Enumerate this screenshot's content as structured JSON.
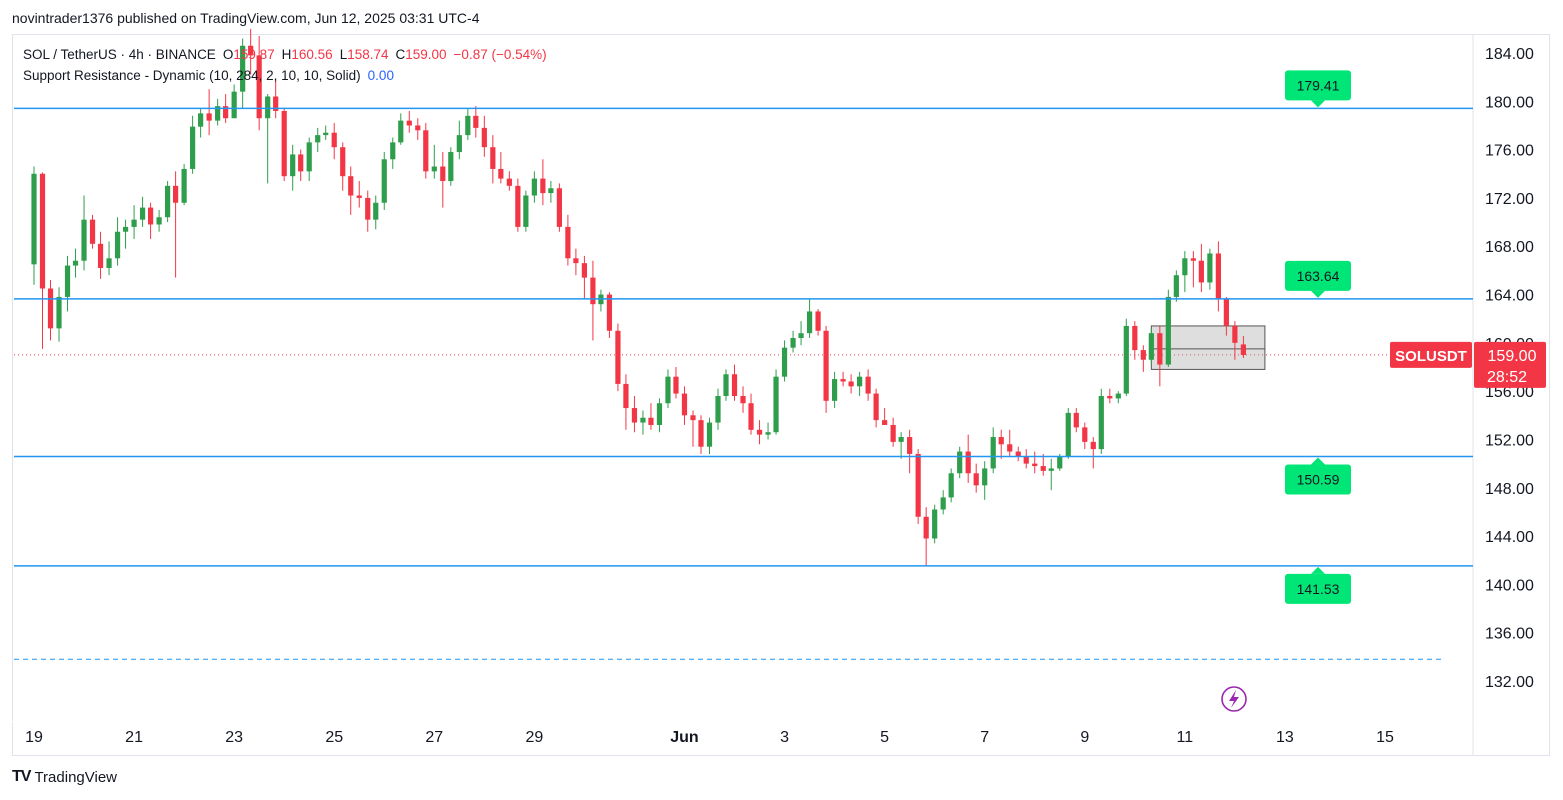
{
  "publisher_line": "novintrader1376 published on TradingView.com, Jun 12, 2025 03:31 UTC-4",
  "legend": {
    "symbol": "SOL / TetherUS · 4h · BINANCE",
    "o_label": "O",
    "o_value": "159.87",
    "h_label": "H",
    "h_value": "160.56",
    "l_label": "L",
    "l_value": "158.74",
    "c_label": "C",
    "c_value": "159.00",
    "change": "−0.87 (−0.54%)",
    "indicator": "Support Resistance - Dynamic (10, 284, 2, 10, 10, Solid)",
    "indicator_value": "0.00"
  },
  "footer": {
    "logo_mark": "TV",
    "logo_text": "TradingView"
  },
  "colors": {
    "up": "#089981",
    "up_body": "#2e9e4c",
    "down": "#f23645",
    "level_line": "#2196f3",
    "level_label": "#00e676",
    "price_label": "#f23645"
  },
  "chart_data": {
    "type": "candlestick",
    "symbol": "SOLUSDT",
    "timeframe": "4h",
    "ylim": [
      129,
      186
    ],
    "y_ticks": [
      132,
      136,
      140,
      144,
      148,
      152,
      156,
      160,
      164,
      168,
      172,
      176,
      180,
      184
    ],
    "x_ticks": [
      "19",
      "21",
      "23",
      "25",
      "27",
      "29",
      "Jun",
      "3",
      "5",
      "7",
      "9",
      "11",
      "13",
      "15"
    ],
    "x_tick_days": [
      19,
      21,
      23,
      25,
      27,
      29,
      32,
      34,
      36,
      38,
      40,
      42,
      44,
      46
    ],
    "last_price": "159.00",
    "countdown": "28:52",
    "support_resistance": [
      179.41,
      163.64,
      150.59,
      141.53
    ],
    "dashed_level": 133.8,
    "candles": [
      {
        "d": 19.0,
        "o": 166.5,
        "h": 174.6,
        "l": 164.8,
        "c": 174.0
      },
      {
        "d": 19.17,
        "o": 174.0,
        "h": 174.1,
        "l": 159.5,
        "c": 164.5
      },
      {
        "d": 19.33,
        "o": 164.5,
        "h": 165.2,
        "l": 160.2,
        "c": 161.2
      },
      {
        "d": 19.5,
        "o": 161.2,
        "h": 164.6,
        "l": 160.1,
        "c": 163.8
      },
      {
        "d": 19.67,
        "o": 163.8,
        "h": 167.2,
        "l": 162.6,
        "c": 166.4
      },
      {
        "d": 19.83,
        "o": 166.4,
        "h": 167.8,
        "l": 165.4,
        "c": 166.8
      },
      {
        "d": 20.0,
        "o": 166.8,
        "h": 172.2,
        "l": 166.0,
        "c": 170.2
      },
      {
        "d": 20.17,
        "o": 170.2,
        "h": 170.6,
        "l": 167.8,
        "c": 168.2
      },
      {
        "d": 20.33,
        "o": 168.2,
        "h": 169.2,
        "l": 165.3,
        "c": 166.2
      },
      {
        "d": 20.5,
        "o": 166.2,
        "h": 168.4,
        "l": 165.6,
        "c": 167.0
      },
      {
        "d": 20.67,
        "o": 167.0,
        "h": 170.4,
        "l": 166.4,
        "c": 169.2
      },
      {
        "d": 20.83,
        "o": 169.2,
        "h": 170.2,
        "l": 167.8,
        "c": 169.6
      },
      {
        "d": 21.0,
        "o": 169.6,
        "h": 171.4,
        "l": 168.6,
        "c": 170.2
      },
      {
        "d": 21.17,
        "o": 170.2,
        "h": 172.1,
        "l": 169.6,
        "c": 171.2
      },
      {
        "d": 21.33,
        "o": 171.2,
        "h": 171.6,
        "l": 168.6,
        "c": 169.8
      },
      {
        "d": 21.5,
        "o": 169.8,
        "h": 171.0,
        "l": 169.2,
        "c": 170.4
      },
      {
        "d": 21.67,
        "o": 170.4,
        "h": 173.4,
        "l": 170.0,
        "c": 173.0
      },
      {
        "d": 21.83,
        "o": 173.0,
        "h": 174.2,
        "l": 165.4,
        "c": 171.6
      },
      {
        "d": 22.0,
        "o": 171.6,
        "h": 174.8,
        "l": 171.4,
        "c": 174.4
      },
      {
        "d": 22.17,
        "o": 174.4,
        "h": 178.8,
        "l": 174.0,
        "c": 177.9
      },
      {
        "d": 22.33,
        "o": 177.9,
        "h": 179.4,
        "l": 177.0,
        "c": 179.0
      },
      {
        "d": 22.5,
        "o": 179.0,
        "h": 181.0,
        "l": 177.2,
        "c": 178.4
      },
      {
        "d": 22.67,
        "o": 178.4,
        "h": 180.2,
        "l": 178.0,
        "c": 179.6
      },
      {
        "d": 22.83,
        "o": 179.6,
        "h": 180.6,
        "l": 178.2,
        "c": 178.6
      },
      {
        "d": 23.0,
        "o": 178.6,
        "h": 181.4,
        "l": 178.6,
        "c": 180.8
      },
      {
        "d": 23.17,
        "o": 180.8,
        "h": 185.2,
        "l": 179.4,
        "c": 184.6
      },
      {
        "d": 23.33,
        "o": 184.6,
        "h": 186.0,
        "l": 182.2,
        "c": 183.8
      },
      {
        "d": 23.5,
        "o": 183.8,
        "h": 185.4,
        "l": 177.6,
        "c": 178.6
      },
      {
        "d": 23.67,
        "o": 178.6,
        "h": 180.6,
        "l": 173.2,
        "c": 180.4
      },
      {
        "d": 23.83,
        "o": 180.4,
        "h": 181.8,
        "l": 178.6,
        "c": 179.2
      },
      {
        "d": 24.0,
        "o": 179.2,
        "h": 179.4,
        "l": 173.4,
        "c": 173.8
      },
      {
        "d": 24.17,
        "o": 173.8,
        "h": 176.4,
        "l": 172.6,
        "c": 175.6
      },
      {
        "d": 24.33,
        "o": 175.6,
        "h": 176.0,
        "l": 173.4,
        "c": 174.2
      },
      {
        "d": 24.5,
        "o": 174.2,
        "h": 177.0,
        "l": 173.4,
        "c": 176.6
      },
      {
        "d": 24.67,
        "o": 176.6,
        "h": 177.8,
        "l": 175.8,
        "c": 177.2
      },
      {
        "d": 24.83,
        "o": 177.2,
        "h": 178.0,
        "l": 176.8,
        "c": 177.4
      },
      {
        "d": 25.0,
        "o": 177.4,
        "h": 178.2,
        "l": 175.2,
        "c": 176.2
      },
      {
        "d": 25.17,
        "o": 176.2,
        "h": 176.6,
        "l": 172.6,
        "c": 173.8
      },
      {
        "d": 25.33,
        "o": 173.8,
        "h": 174.6,
        "l": 170.6,
        "c": 172.2
      },
      {
        "d": 25.5,
        "o": 172.2,
        "h": 173.4,
        "l": 171.2,
        "c": 172.0
      },
      {
        "d": 25.67,
        "o": 172.0,
        "h": 172.6,
        "l": 169.2,
        "c": 170.2
      },
      {
        "d": 25.83,
        "o": 170.2,
        "h": 172.2,
        "l": 169.4,
        "c": 171.6
      },
      {
        "d": 26.0,
        "o": 171.6,
        "h": 175.8,
        "l": 171.0,
        "c": 175.2
      },
      {
        "d": 26.17,
        "o": 175.2,
        "h": 177.0,
        "l": 174.4,
        "c": 176.6
      },
      {
        "d": 26.33,
        "o": 176.6,
        "h": 179.0,
        "l": 176.4,
        "c": 178.4
      },
      {
        "d": 26.5,
        "o": 178.4,
        "h": 179.2,
        "l": 177.4,
        "c": 178.0
      },
      {
        "d": 26.67,
        "o": 178.0,
        "h": 178.6,
        "l": 176.8,
        "c": 177.6
      },
      {
        "d": 26.83,
        "o": 177.6,
        "h": 178.2,
        "l": 173.6,
        "c": 174.2
      },
      {
        "d": 27.0,
        "o": 174.2,
        "h": 176.4,
        "l": 173.6,
        "c": 174.6
      },
      {
        "d": 27.17,
        "o": 174.6,
        "h": 175.8,
        "l": 171.2,
        "c": 173.4
      },
      {
        "d": 27.33,
        "o": 173.4,
        "h": 176.2,
        "l": 173.0,
        "c": 175.8
      },
      {
        "d": 27.5,
        "o": 175.8,
        "h": 178.4,
        "l": 175.2,
        "c": 177.2
      },
      {
        "d": 27.67,
        "o": 177.2,
        "h": 179.4,
        "l": 176.8,
        "c": 178.8
      },
      {
        "d": 27.83,
        "o": 178.8,
        "h": 179.6,
        "l": 177.0,
        "c": 177.8
      },
      {
        "d": 28.0,
        "o": 177.8,
        "h": 178.8,
        "l": 175.4,
        "c": 176.2
      },
      {
        "d": 28.17,
        "o": 176.2,
        "h": 177.2,
        "l": 173.2,
        "c": 174.4
      },
      {
        "d": 28.33,
        "o": 174.4,
        "h": 175.8,
        "l": 173.2,
        "c": 173.6
      },
      {
        "d": 28.5,
        "o": 173.6,
        "h": 174.2,
        "l": 172.6,
        "c": 173.0
      },
      {
        "d": 28.67,
        "o": 173.0,
        "h": 173.6,
        "l": 169.2,
        "c": 169.6
      },
      {
        "d": 28.83,
        "o": 169.6,
        "h": 172.6,
        "l": 169.2,
        "c": 172.2
      },
      {
        "d": 29.0,
        "o": 172.2,
        "h": 174.2,
        "l": 171.6,
        "c": 173.6
      },
      {
        "d": 29.17,
        "o": 173.6,
        "h": 175.2,
        "l": 171.4,
        "c": 172.4
      },
      {
        "d": 29.33,
        "o": 172.4,
        "h": 173.4,
        "l": 171.6,
        "c": 172.8
      },
      {
        "d": 29.5,
        "o": 172.8,
        "h": 173.2,
        "l": 169.2,
        "c": 169.6
      },
      {
        "d": 29.67,
        "o": 169.6,
        "h": 170.6,
        "l": 166.4,
        "c": 167.0
      },
      {
        "d": 29.83,
        "o": 167.0,
        "h": 167.8,
        "l": 165.6,
        "c": 166.6
      },
      {
        "d": 30.0,
        "o": 166.6,
        "h": 167.2,
        "l": 163.6,
        "c": 165.4
      },
      {
        "d": 30.17,
        "o": 165.4,
        "h": 166.8,
        "l": 160.2,
        "c": 163.2
      },
      {
        "d": 30.33,
        "o": 163.2,
        "h": 164.4,
        "l": 162.6,
        "c": 164.0
      },
      {
        "d": 30.5,
        "o": 164.0,
        "h": 164.2,
        "l": 160.4,
        "c": 161.0
      },
      {
        "d": 30.67,
        "o": 161.0,
        "h": 161.6,
        "l": 156.0,
        "c": 156.6
      },
      {
        "d": 30.83,
        "o": 156.6,
        "h": 157.4,
        "l": 152.8,
        "c": 154.6
      },
      {
        "d": 31.0,
        "o": 154.6,
        "h": 155.6,
        "l": 152.6,
        "c": 153.4
      },
      {
        "d": 31.17,
        "o": 153.4,
        "h": 154.4,
        "l": 152.4,
        "c": 153.8
      },
      {
        "d": 31.33,
        "o": 153.8,
        "h": 155.0,
        "l": 152.8,
        "c": 153.2
      },
      {
        "d": 31.5,
        "o": 153.2,
        "h": 155.4,
        "l": 152.6,
        "c": 155.0
      },
      {
        "d": 31.67,
        "o": 155.0,
        "h": 157.8,
        "l": 154.6,
        "c": 157.2
      },
      {
        "d": 31.83,
        "o": 157.2,
        "h": 158.0,
        "l": 155.4,
        "c": 155.8
      },
      {
        "d": 32.0,
        "o": 155.8,
        "h": 156.4,
        "l": 153.2,
        "c": 154.0
      },
      {
        "d": 32.17,
        "o": 154.0,
        "h": 154.4,
        "l": 151.4,
        "c": 153.6
      },
      {
        "d": 32.33,
        "o": 153.6,
        "h": 154.0,
        "l": 150.8,
        "c": 151.4
      },
      {
        "d": 32.5,
        "o": 151.4,
        "h": 153.8,
        "l": 150.8,
        "c": 153.4
      },
      {
        "d": 32.67,
        "o": 153.4,
        "h": 156.2,
        "l": 152.8,
        "c": 155.6
      },
      {
        "d": 32.83,
        "o": 155.6,
        "h": 157.8,
        "l": 155.2,
        "c": 157.4
      },
      {
        "d": 33.0,
        "o": 157.4,
        "h": 158.2,
        "l": 155.2,
        "c": 155.6
      },
      {
        "d": 33.17,
        "o": 155.6,
        "h": 156.4,
        "l": 154.2,
        "c": 155.0
      },
      {
        "d": 33.33,
        "o": 155.0,
        "h": 155.8,
        "l": 152.4,
        "c": 152.8
      },
      {
        "d": 33.5,
        "o": 152.8,
        "h": 153.6,
        "l": 151.6,
        "c": 152.4
      },
      {
        "d": 33.67,
        "o": 152.4,
        "h": 153.4,
        "l": 152.0,
        "c": 152.6
      },
      {
        "d": 33.83,
        "o": 152.6,
        "h": 157.8,
        "l": 152.4,
        "c": 157.2
      },
      {
        "d": 34.0,
        "o": 157.2,
        "h": 160.2,
        "l": 156.8,
        "c": 159.6
      },
      {
        "d": 34.17,
        "o": 159.6,
        "h": 161.0,
        "l": 159.2,
        "c": 160.4
      },
      {
        "d": 34.33,
        "o": 160.4,
        "h": 161.8,
        "l": 159.8,
        "c": 160.8
      },
      {
        "d": 34.5,
        "o": 160.8,
        "h": 163.6,
        "l": 160.4,
        "c": 162.6
      },
      {
        "d": 34.67,
        "o": 162.6,
        "h": 162.8,
        "l": 160.6,
        "c": 161.0
      },
      {
        "d": 34.83,
        "o": 161.0,
        "h": 161.4,
        "l": 154.2,
        "c": 155.2
      },
      {
        "d": 35.0,
        "o": 155.2,
        "h": 157.6,
        "l": 154.6,
        "c": 157.0
      },
      {
        "d": 35.17,
        "o": 157.0,
        "h": 157.6,
        "l": 156.4,
        "c": 156.8
      },
      {
        "d": 35.33,
        "o": 156.8,
        "h": 157.4,
        "l": 155.8,
        "c": 156.4
      },
      {
        "d": 35.5,
        "o": 156.4,
        "h": 157.6,
        "l": 155.6,
        "c": 157.2
      },
      {
        "d": 35.67,
        "o": 157.2,
        "h": 157.8,
        "l": 155.2,
        "c": 155.8
      },
      {
        "d": 35.83,
        "o": 155.8,
        "h": 156.2,
        "l": 153.0,
        "c": 153.6
      },
      {
        "d": 36.0,
        "o": 153.6,
        "h": 154.6,
        "l": 153.2,
        "c": 153.2
      },
      {
        "d": 36.17,
        "o": 153.2,
        "h": 153.8,
        "l": 151.4,
        "c": 151.8
      },
      {
        "d": 36.33,
        "o": 151.8,
        "h": 152.6,
        "l": 150.4,
        "c": 152.2
      },
      {
        "d": 36.5,
        "o": 152.2,
        "h": 152.8,
        "l": 149.2,
        "c": 150.8
      },
      {
        "d": 36.67,
        "o": 150.8,
        "h": 151.2,
        "l": 145.0,
        "c": 145.6
      },
      {
        "d": 36.83,
        "o": 145.6,
        "h": 146.4,
        "l": 141.5,
        "c": 143.8
      },
      {
        "d": 37.0,
        "o": 143.8,
        "h": 146.6,
        "l": 143.4,
        "c": 146.2
      },
      {
        "d": 37.17,
        "o": 146.2,
        "h": 147.8,
        "l": 145.8,
        "c": 147.2
      },
      {
        "d": 37.33,
        "o": 147.2,
        "h": 149.6,
        "l": 146.8,
        "c": 149.2
      },
      {
        "d": 37.5,
        "o": 149.2,
        "h": 151.4,
        "l": 148.8,
        "c": 151.0
      },
      {
        "d": 37.67,
        "o": 151.0,
        "h": 152.4,
        "l": 148.4,
        "c": 149.2
      },
      {
        "d": 37.83,
        "o": 149.2,
        "h": 150.0,
        "l": 147.6,
        "c": 148.2
      },
      {
        "d": 38.0,
        "o": 148.2,
        "h": 150.2,
        "l": 147.0,
        "c": 149.6
      },
      {
        "d": 38.17,
        "o": 149.6,
        "h": 153.0,
        "l": 149.2,
        "c": 152.2
      },
      {
        "d": 38.33,
        "o": 152.2,
        "h": 152.8,
        "l": 150.4,
        "c": 151.6
      },
      {
        "d": 38.5,
        "o": 151.6,
        "h": 152.8,
        "l": 150.6,
        "c": 151.0
      },
      {
        "d": 38.67,
        "o": 151.0,
        "h": 151.4,
        "l": 150.2,
        "c": 150.6
      },
      {
        "d": 38.83,
        "o": 150.6,
        "h": 151.2,
        "l": 149.6,
        "c": 150.0
      },
      {
        "d": 39.0,
        "o": 150.0,
        "h": 151.0,
        "l": 149.2,
        "c": 149.8
      },
      {
        "d": 39.17,
        "o": 149.8,
        "h": 150.8,
        "l": 149.0,
        "c": 149.4
      },
      {
        "d": 39.33,
        "o": 149.4,
        "h": 150.4,
        "l": 147.8,
        "c": 149.6
      },
      {
        "d": 39.5,
        "o": 149.6,
        "h": 150.8,
        "l": 149.4,
        "c": 150.6
      },
      {
        "d": 39.67,
        "o": 150.6,
        "h": 154.6,
        "l": 150.4,
        "c": 154.2
      },
      {
        "d": 39.83,
        "o": 154.2,
        "h": 154.6,
        "l": 152.6,
        "c": 153.0
      },
      {
        "d": 40.0,
        "o": 153.0,
        "h": 153.4,
        "l": 151.2,
        "c": 151.8
      },
      {
        "d": 40.17,
        "o": 151.8,
        "h": 152.2,
        "l": 149.6,
        "c": 151.2
      },
      {
        "d": 40.33,
        "o": 151.2,
        "h": 156.2,
        "l": 150.8,
        "c": 155.6
      },
      {
        "d": 40.5,
        "o": 155.6,
        "h": 156.2,
        "l": 155.0,
        "c": 155.4
      },
      {
        "d": 40.67,
        "o": 155.4,
        "h": 156.0,
        "l": 155.0,
        "c": 155.8
      },
      {
        "d": 40.83,
        "o": 155.8,
        "h": 162.0,
        "l": 155.6,
        "c": 161.4
      },
      {
        "d": 41.0,
        "o": 161.4,
        "h": 161.8,
        "l": 158.6,
        "c": 159.4
      },
      {
        "d": 41.17,
        "o": 159.4,
        "h": 159.8,
        "l": 157.6,
        "c": 158.6
      },
      {
        "d": 41.33,
        "o": 158.6,
        "h": 161.2,
        "l": 158.2,
        "c": 160.8
      },
      {
        "d": 41.5,
        "o": 160.8,
        "h": 161.4,
        "l": 156.4,
        "c": 158.2
      },
      {
        "d": 41.67,
        "o": 158.2,
        "h": 164.4,
        "l": 158.0,
        "c": 163.8
      },
      {
        "d": 41.83,
        "o": 163.8,
        "h": 166.0,
        "l": 163.4,
        "c": 165.6
      },
      {
        "d": 42.0,
        "o": 165.6,
        "h": 167.6,
        "l": 164.2,
        "c": 167.0
      },
      {
        "d": 42.17,
        "o": 167.0,
        "h": 167.6,
        "l": 164.6,
        "c": 166.8
      },
      {
        "d": 42.33,
        "o": 166.8,
        "h": 168.2,
        "l": 164.2,
        "c": 165.0
      },
      {
        "d": 42.5,
        "o": 165.0,
        "h": 167.8,
        "l": 164.4,
        "c": 167.4
      },
      {
        "d": 42.67,
        "o": 167.4,
        "h": 168.4,
        "l": 162.6,
        "c": 163.6
      },
      {
        "d": 42.83,
        "o": 163.6,
        "h": 163.8,
        "l": 160.6,
        "c": 161.4
      },
      {
        "d": 43.0,
        "o": 161.4,
        "h": 161.8,
        "l": 158.6,
        "c": 160.0
      },
      {
        "d": 43.17,
        "o": 159.87,
        "h": 160.56,
        "l": 158.74,
        "c": 159.0
      }
    ],
    "zone_box": {
      "d_start": 41.33,
      "d_end": 43.6,
      "top": 161.4,
      "bottom": 157.8,
      "mid": 159.5
    }
  }
}
